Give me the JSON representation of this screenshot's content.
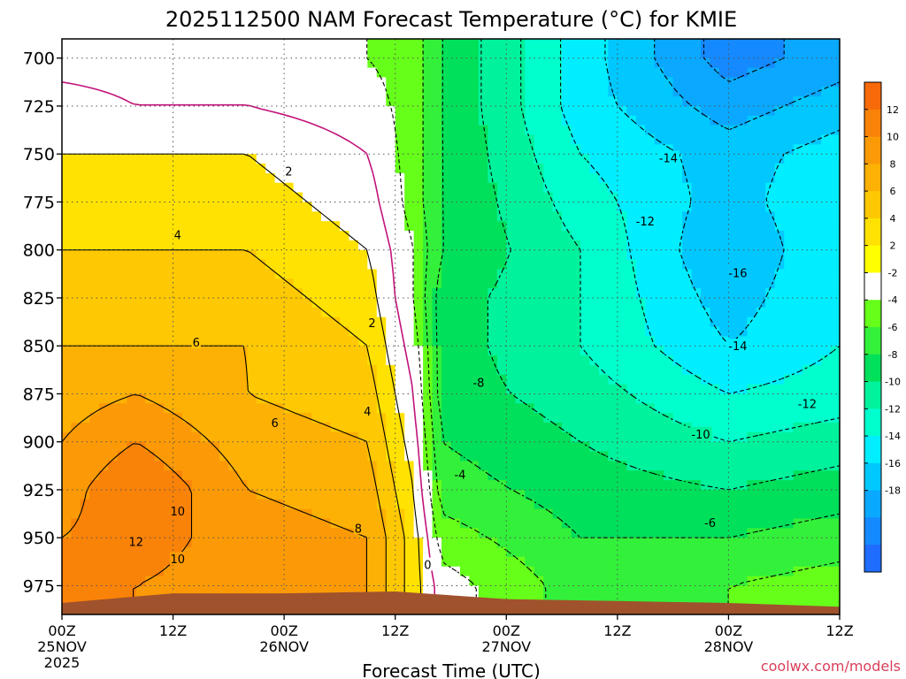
{
  "chart_data": {
    "type": "heatmap",
    "title": "2025112500 NAM Forecast Temperature (°C) for KMIE",
    "xlabel": "Forecast Time (UTC)",
    "ylabel": "",
    "credit": "coolwx.com/models",
    "x_ticks": [
      {
        "hour": 0,
        "label": "00Z",
        "date": "25NOV",
        "year": "2025"
      },
      {
        "hour": 12,
        "label": "12Z",
        "date": "",
        "year": ""
      },
      {
        "hour": 24,
        "label": "00Z",
        "date": "26NOV",
        "year": ""
      },
      {
        "hour": 36,
        "label": "12Z",
        "date": "",
        "year": ""
      },
      {
        "hour": 48,
        "label": "00Z",
        "date": "27NOV",
        "year": ""
      },
      {
        "hour": 60,
        "label": "12Z",
        "date": "",
        "year": ""
      },
      {
        "hour": 72,
        "label": "00Z",
        "date": "28NOV",
        "year": ""
      },
      {
        "hour": 84,
        "label": "12Z",
        "date": "",
        "year": ""
      }
    ],
    "xlim": [
      0,
      84
    ],
    "y_ticks": [
      700,
      725,
      750,
      775,
      800,
      825,
      850,
      875,
      900,
      925,
      950,
      975
    ],
    "ylim": [
      690,
      990
    ],
    "colorbar": {
      "labels": [
        "12",
        "10",
        "8",
        "6",
        "4",
        "2",
        "-2",
        "-4",
        "-6",
        "-8",
        "-10",
        "-12",
        "-14",
        "-16",
        "-18"
      ],
      "bins": [
        {
          "color": "#f76a0a"
        },
        {
          "color": "#f98208"
        },
        {
          "color": "#fb9a06"
        },
        {
          "color": "#fdb104"
        },
        {
          "color": "#fec802"
        },
        {
          "color": "#ffe201"
        },
        {
          "color": "#ffff00"
        },
        {
          "color": "#ffffff"
        },
        {
          "color": "#66ff1a"
        },
        {
          "color": "#33f03a"
        },
        {
          "color": "#00e05a"
        },
        {
          "color": "#00f29c"
        },
        {
          "color": "#00ffcc"
        },
        {
          "color": "#00eeff"
        },
        {
          "color": "#00c8ff"
        },
        {
          "color": "#0aa8ff"
        },
        {
          "color": "#1589ff"
        },
        {
          "color": "#1f6cff"
        }
      ]
    },
    "temperature_profiles": [
      {
        "hour": 0,
        "p": [
          700,
          725,
          750,
          775,
          800,
          825,
          850,
          875,
          900,
          925,
          950,
          975
        ],
        "t": [
          -1,
          1,
          2,
          3,
          4,
          5,
          6,
          7,
          8,
          9,
          10,
          10
        ]
      },
      {
        "hour": 8,
        "p": [
          700,
          725,
          750,
          775,
          800,
          825,
          850,
          875,
          900,
          925,
          950,
          975
        ],
        "t": [
          -1,
          0,
          2,
          3,
          4,
          5,
          6,
          8,
          10,
          12,
          11,
          10
        ]
      },
      {
        "hour": 20,
        "p": [
          700,
          725,
          750,
          775,
          800,
          825,
          850,
          875,
          900,
          925,
          950,
          975
        ],
        "t": [
          -1,
          0,
          2,
          3,
          4,
          5,
          6,
          6,
          7,
          8,
          9,
          9
        ]
      },
      {
        "hour": 33,
        "p": [
          700,
          725,
          750,
          775,
          800,
          825,
          850,
          875,
          900,
          925,
          950,
          975
        ],
        "t": [
          -2,
          -1,
          0,
          1,
          2,
          3,
          4,
          5,
          6,
          7,
          8,
          8
        ]
      },
      {
        "hour": 38,
        "p": [
          700,
          725,
          750,
          775,
          800,
          825,
          850,
          875,
          900,
          925,
          950,
          975
        ],
        "t": [
          -3,
          -3,
          -3,
          -3,
          -2,
          -2,
          -1,
          0,
          1,
          2,
          3,
          3
        ]
      },
      {
        "hour": 41,
        "p": [
          700,
          725,
          750,
          775,
          800,
          825,
          850,
          875,
          900,
          925,
          950,
          975
        ],
        "t": [
          -6,
          -6,
          -6,
          -6,
          -6,
          -7,
          -7,
          -7,
          -6,
          -5,
          -3,
          -1
        ]
      },
      {
        "hour": 56,
        "p": [
          700,
          725,
          750,
          775,
          800,
          825,
          850,
          875,
          900,
          925,
          950,
          975
        ],
        "t": [
          -13,
          -13,
          -12,
          -11,
          -10,
          -10,
          -10,
          -9,
          -8,
          -7,
          -6,
          -5
        ]
      },
      {
        "hour": 72,
        "p": [
          700,
          725,
          750,
          775,
          800,
          825,
          850,
          875,
          900,
          925,
          950,
          975
        ],
        "t": [
          -19,
          -17,
          -15,
          -15,
          -16,
          -15,
          -14,
          -12,
          -10,
          -8,
          -6,
          -4
        ]
      },
      {
        "hour": 84,
        "p": [
          700,
          725,
          750,
          775,
          800,
          825,
          850,
          875,
          900,
          925,
          950,
          975
        ],
        "t": [
          -17,
          -15,
          -13,
          -12,
          -12,
          -12,
          -12,
          -11,
          -9,
          -7,
          -5,
          -3
        ]
      }
    ],
    "surface_pressure": [
      {
        "hour": 0,
        "p": 984
      },
      {
        "hour": 12,
        "p": 979
      },
      {
        "hour": 24,
        "p": 979
      },
      {
        "hour": 36,
        "p": 978
      },
      {
        "hour": 48,
        "p": 982
      },
      {
        "hour": 60,
        "p": 983
      },
      {
        "hour": 72,
        "p": 984
      },
      {
        "hour": 84,
        "p": 986
      }
    ],
    "contour_labels": [
      {
        "hour": 24.5,
        "p": 759,
        "text": "2"
      },
      {
        "hour": 12.5,
        "p": 792,
        "text": "4"
      },
      {
        "hour": 14.5,
        "p": 848,
        "text": "6"
      },
      {
        "hour": 23,
        "p": 890,
        "text": "6"
      },
      {
        "hour": 12.5,
        "p": 936,
        "text": "10"
      },
      {
        "hour": 12.5,
        "p": 961,
        "text": "10"
      },
      {
        "hour": 8,
        "p": 952,
        "text": "12"
      },
      {
        "hour": 33.5,
        "p": 838,
        "text": "2"
      },
      {
        "hour": 33,
        "p": 884,
        "text": "4"
      },
      {
        "hour": 32,
        "p": 945,
        "text": "8"
      },
      {
        "hour": 39.5,
        "p": 964,
        "text": "0"
      },
      {
        "hour": 43,
        "p": 917,
        "text": "-4"
      },
      {
        "hour": 45,
        "p": 869,
        "text": "-8"
      },
      {
        "hour": 63,
        "p": 785,
        "text": "-12"
      },
      {
        "hour": 65.5,
        "p": 752,
        "text": "-14"
      },
      {
        "hour": 73,
        "p": 812,
        "text": "-16"
      },
      {
        "hour": 73,
        "p": 850,
        "text": "-14"
      },
      {
        "hour": 80.5,
        "p": 880,
        "text": "-12"
      },
      {
        "hour": 69,
        "p": 896,
        "text": "-10"
      },
      {
        "hour": 70,
        "p": 942,
        "text": "-6"
      }
    ]
  }
}
